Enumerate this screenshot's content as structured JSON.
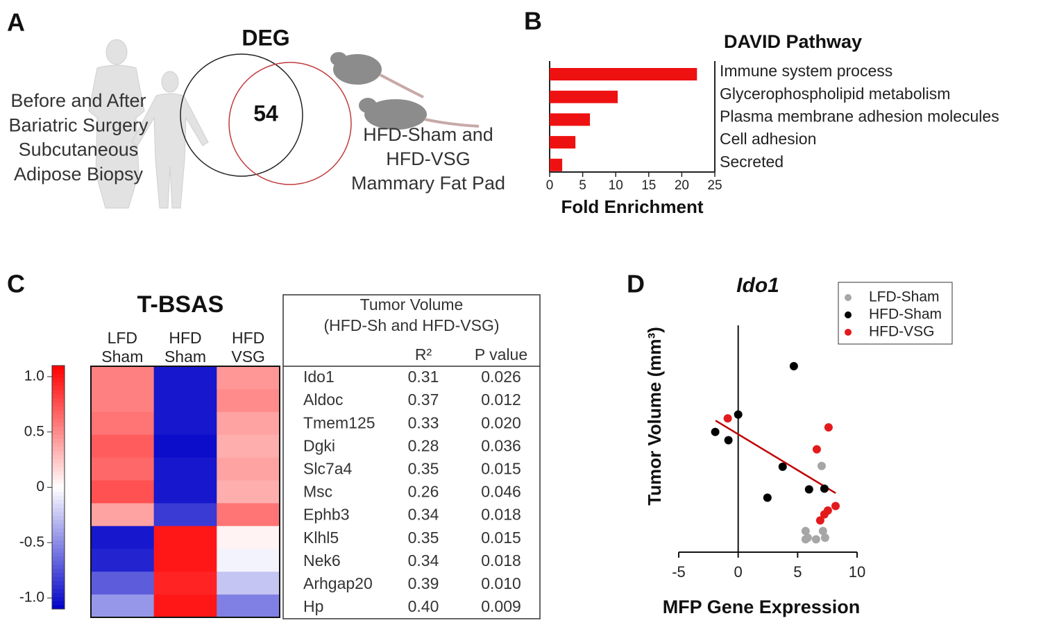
{
  "panel_labels": [
    "A",
    "B",
    "C",
    "D"
  ],
  "venn": {
    "title": "DEG",
    "count": "54",
    "left_text": [
      "Before and After",
      "Bariatric Surgery",
      "Subcutaneous",
      "Adipose Biopsy"
    ],
    "right_text": [
      "HFD-Sham and",
      "HFD-VSG",
      "Mammary Fat Pad"
    ]
  },
  "chart_data": [
    {
      "type": "bar",
      "title": "DAVID Pathway",
      "xlabel": "Fold Enrichment",
      "categories": [
        "Immune system process",
        "Glycerophospholipid metabolism",
        "Plasma membrane adhesion molecules",
        "Cell adhesion",
        "Secreted"
      ],
      "values": [
        22.3,
        10.3,
        6.1,
        3.9,
        1.9
      ],
      "color": "#ee1111",
      "xlim": [
        0,
        25
      ],
      "xticks": [
        0,
        5,
        10,
        15,
        20,
        25
      ]
    },
    {
      "type": "heatmap",
      "title": "T-BSAS",
      "columns": [
        [
          "LFD",
          "Sham"
        ],
        [
          "HFD",
          "Sham"
        ],
        [
          "HFD",
          "VSG"
        ]
      ],
      "values": [
        [
          0.55,
          -1.0,
          0.45
        ],
        [
          0.55,
          -1.0,
          0.5
        ],
        [
          0.6,
          -1.0,
          0.4
        ],
        [
          0.7,
          -1.05,
          0.35
        ],
        [
          0.65,
          -1.0,
          0.4
        ],
        [
          0.75,
          -1.0,
          0.35
        ],
        [
          0.4,
          -0.85,
          0.6
        ],
        [
          -1.0,
          1.0,
          0.05
        ],
        [
          -0.95,
          1.0,
          -0.05
        ],
        [
          -0.7,
          0.95,
          -0.25
        ],
        [
          -0.45,
          1.0,
          -0.55
        ]
      ],
      "clim": [
        -1.1,
        1.1
      ],
      "colors": [
        "#0000c8",
        "#ffffff",
        "#ff0000"
      ],
      "colorbar_ticks": [
        {
          "value": 1,
          "label": "1.0"
        },
        0.5,
        0,
        -0.5,
        {
          "value": -1,
          "label": "-1.0"
        }
      ]
    },
    {
      "type": "scatter",
      "title": "Ido1",
      "xlabel": "MFP Gene Expression",
      "ylabel": "Tumor Volume (mm³)",
      "xlim": [
        -5,
        10
      ],
      "xticks": [
        -5,
        0,
        5,
        10
      ],
      "ylim": [
        0,
        3
      ],
      "legend": "top-right",
      "series": [
        {
          "name": "LFD-Sham",
          "color": "#a6a6a6",
          "x": [
            5.67,
            5.85,
            6.55,
            7.13,
            7.31,
            5.67,
            7.02
          ],
          "values": [
            0.28,
            0.19,
            0.17,
            0.28,
            0.19,
            0.17,
            1.14
          ]
        },
        {
          "name": "HFD-Sham",
          "color": "#000000",
          "x": [
            4.68,
            0,
            -1.93,
            -0.82,
            3.74,
            2.46,
            5.96,
            7.25
          ],
          "values": [
            2.46,
            1.82,
            1.59,
            1.48,
            1.13,
            0.72,
            0.83,
            0.84
          ]
        },
        {
          "name": "HFD-VSG",
          "color": "#e31a1c",
          "x": [
            -0.88,
            7.6,
            6.61,
            8.19,
            7.54,
            7.25,
            6.9
          ],
          "values": [
            1.77,
            1.65,
            1.36,
            0.61,
            0.55,
            0.5,
            0.42
          ]
        }
      ],
      "trendline": {
        "color": "#c00000",
        "x": [
          -1.9,
          8.2
        ],
        "y": [
          1.74,
          0.78
        ]
      }
    }
  ],
  "table": {
    "title": [
      "Tumor Volume",
      "(HFD-Sh  and HFD-VSG)"
    ],
    "columns": [
      "R²",
      "P value"
    ],
    "rows": [
      [
        "Ido1",
        "0.31",
        "0.026"
      ],
      [
        "Aldoc",
        "0.37",
        "0.012"
      ],
      [
        "Tmem125",
        "0.33",
        "0.020"
      ],
      [
        "Dgki",
        "0.28",
        "0.036"
      ],
      [
        "Slc7a4",
        "0.35",
        "0.015"
      ],
      [
        "Msc",
        "0.26",
        "0.046"
      ],
      [
        "Ephb3",
        "0.34",
        "0.018"
      ],
      [
        "Klhl5",
        "0.35",
        "0.015"
      ],
      [
        "Nek6",
        "0.34",
        "0.018"
      ],
      [
        "Arhgap20",
        "0.39",
        "0.010"
      ],
      [
        "Hp",
        "0.40",
        "0.009"
      ]
    ]
  }
}
